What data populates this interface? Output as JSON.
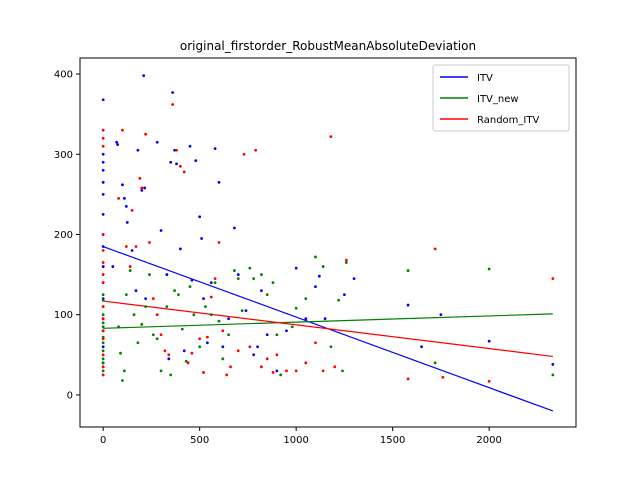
{
  "chart_data": {
    "type": "scatter",
    "title": "original_firstorder_RobustMeanAbsoluteDeviation",
    "xlim": [
      -120,
      2450
    ],
    "ylim": [
      -40,
      420
    ],
    "xticks": [
      0,
      500,
      1000,
      1500,
      2000
    ],
    "yticks": [
      0,
      100,
      200,
      300,
      400
    ],
    "grid": false,
    "legend_position": "top-right",
    "series": [
      {
        "name": "ITV",
        "color": "#0000ff",
        "points": [
          [
            0,
            368
          ],
          [
            0,
            300
          ],
          [
            0,
            290
          ],
          [
            0,
            280
          ],
          [
            0,
            265
          ],
          [
            0,
            250
          ],
          [
            0,
            225
          ],
          [
            0,
            200
          ],
          [
            0,
            185
          ],
          [
            0,
            160
          ],
          [
            0,
            140
          ],
          [
            0,
            120
          ],
          [
            0,
            95
          ],
          [
            0,
            80
          ],
          [
            0,
            60
          ],
          [
            0,
            40
          ],
          [
            50,
            160
          ],
          [
            70,
            315
          ],
          [
            75,
            312
          ],
          [
            100,
            262
          ],
          [
            110,
            245
          ],
          [
            120,
            235
          ],
          [
            125,
            215
          ],
          [
            150,
            180
          ],
          [
            170,
            130
          ],
          [
            180,
            305
          ],
          [
            200,
            255
          ],
          [
            210,
            398
          ],
          [
            215,
            258
          ],
          [
            220,
            120
          ],
          [
            280,
            315
          ],
          [
            300,
            205
          ],
          [
            330,
            150
          ],
          [
            340,
            45
          ],
          [
            350,
            290
          ],
          [
            360,
            377
          ],
          [
            370,
            305
          ],
          [
            380,
            288
          ],
          [
            400,
            182
          ],
          [
            420,
            55
          ],
          [
            450,
            310
          ],
          [
            460,
            143
          ],
          [
            480,
            292
          ],
          [
            500,
            222
          ],
          [
            510,
            195
          ],
          [
            520,
            120
          ],
          [
            540,
            65
          ],
          [
            560,
            140
          ],
          [
            580,
            307
          ],
          [
            600,
            265
          ],
          [
            620,
            60
          ],
          [
            650,
            95
          ],
          [
            680,
            208
          ],
          [
            700,
            150
          ],
          [
            740,
            105
          ],
          [
            780,
            50
          ],
          [
            800,
            60
          ],
          [
            820,
            130
          ],
          [
            850,
            75
          ],
          [
            900,
            30
          ],
          [
            950,
            80
          ],
          [
            1000,
            158
          ],
          [
            1050,
            95
          ],
          [
            1100,
            135
          ],
          [
            1120,
            148
          ],
          [
            1150,
            95
          ],
          [
            1250,
            125
          ],
          [
            1300,
            145
          ],
          [
            1580,
            112
          ],
          [
            1650,
            60
          ],
          [
            1750,
            100
          ],
          [
            2000,
            67
          ],
          [
            2330,
            38
          ]
        ]
      },
      {
        "name": "ITV_new",
        "color": "#008000",
        "points": [
          [
            0,
            125
          ],
          [
            0,
            118
          ],
          [
            0,
            110
          ],
          [
            0,
            100
          ],
          [
            0,
            90
          ],
          [
            0,
            85
          ],
          [
            0,
            72
          ],
          [
            0,
            65
          ],
          [
            0,
            55
          ],
          [
            0,
            45
          ],
          [
            0,
            40
          ],
          [
            0,
            35
          ],
          [
            0,
            30
          ],
          [
            0,
            25
          ],
          [
            80,
            85
          ],
          [
            90,
            52
          ],
          [
            100,
            18
          ],
          [
            110,
            30
          ],
          [
            120,
            125
          ],
          [
            140,
            155
          ],
          [
            160,
            100
          ],
          [
            180,
            65
          ],
          [
            200,
            88
          ],
          [
            220,
            110
          ],
          [
            240,
            150
          ],
          [
            260,
            75
          ],
          [
            280,
            70
          ],
          [
            300,
            30
          ],
          [
            330,
            110
          ],
          [
            350,
            25
          ],
          [
            370,
            130
          ],
          [
            390,
            125
          ],
          [
            410,
            82
          ],
          [
            430,
            42
          ],
          [
            450,
            135
          ],
          [
            470,
            100
          ],
          [
            500,
            60
          ],
          [
            530,
            110
          ],
          [
            560,
            100
          ],
          [
            580,
            140
          ],
          [
            600,
            92
          ],
          [
            620,
            45
          ],
          [
            650,
            75
          ],
          [
            680,
            155
          ],
          [
            700,
            145
          ],
          [
            720,
            105
          ],
          [
            760,
            158
          ],
          [
            780,
            145
          ],
          [
            820,
            150
          ],
          [
            850,
            125
          ],
          [
            880,
            140
          ],
          [
            900,
            75
          ],
          [
            920,
            25
          ],
          [
            980,
            85
          ],
          [
            1000,
            108
          ],
          [
            1050,
            120
          ],
          [
            1100,
            172
          ],
          [
            1140,
            160
          ],
          [
            1180,
            60
          ],
          [
            1220,
            118
          ],
          [
            1240,
            30
          ],
          [
            1260,
            165
          ],
          [
            1580,
            155
          ],
          [
            1720,
            40
          ],
          [
            2000,
            157
          ],
          [
            2330,
            25
          ]
        ]
      },
      {
        "name": "Random_ITV",
        "color": "#ff0000",
        "points": [
          [
            0,
            330
          ],
          [
            0,
            320
          ],
          [
            0,
            310
          ],
          [
            0,
            200
          ],
          [
            0,
            180
          ],
          [
            0,
            165
          ],
          [
            0,
            150
          ],
          [
            0,
            140
          ],
          [
            0,
            110
          ],
          [
            0,
            95
          ],
          [
            0,
            80
          ],
          [
            0,
            70
          ],
          [
            0,
            50
          ],
          [
            0,
            35
          ],
          [
            0,
            25
          ],
          [
            80,
            245
          ],
          [
            100,
            330
          ],
          [
            120,
            185
          ],
          [
            140,
            160
          ],
          [
            150,
            230
          ],
          [
            170,
            185
          ],
          [
            190,
            270
          ],
          [
            200,
            258
          ],
          [
            220,
            325
          ],
          [
            240,
            190
          ],
          [
            260,
            120
          ],
          [
            280,
            100
          ],
          [
            300,
            75
          ],
          [
            320,
            55
          ],
          [
            340,
            50
          ],
          [
            360,
            362
          ],
          [
            380,
            305
          ],
          [
            400,
            285
          ],
          [
            420,
            278
          ],
          [
            440,
            40
          ],
          [
            460,
            52
          ],
          [
            500,
            70
          ],
          [
            520,
            28
          ],
          [
            540,
            72
          ],
          [
            560,
            122
          ],
          [
            580,
            145
          ],
          [
            600,
            190
          ],
          [
            620,
            80
          ],
          [
            640,
            25
          ],
          [
            660,
            35
          ],
          [
            700,
            55
          ],
          [
            730,
            300
          ],
          [
            760,
            60
          ],
          [
            790,
            305
          ],
          [
            820,
            35
          ],
          [
            850,
            45
          ],
          [
            880,
            28
          ],
          [
            900,
            50
          ],
          [
            950,
            30
          ],
          [
            1000,
            30
          ],
          [
            1050,
            40
          ],
          [
            1100,
            65
          ],
          [
            1140,
            30
          ],
          [
            1180,
            322
          ],
          [
            1200,
            35
          ],
          [
            1260,
            168
          ],
          [
            1580,
            20
          ],
          [
            1720,
            182
          ],
          [
            1760,
            22
          ],
          [
            2000,
            17
          ],
          [
            2330,
            145
          ]
        ]
      }
    ],
    "fit_lines": [
      {
        "series": "ITV",
        "x": [
          0,
          2330
        ],
        "y": [
          185,
          -20
        ]
      },
      {
        "series": "ITV_new",
        "x": [
          0,
          2330
        ],
        "y": [
          83,
          101
        ]
      },
      {
        "series": "Random_ITV",
        "x": [
          0,
          2330
        ],
        "y": [
          117,
          48
        ]
      }
    ]
  }
}
